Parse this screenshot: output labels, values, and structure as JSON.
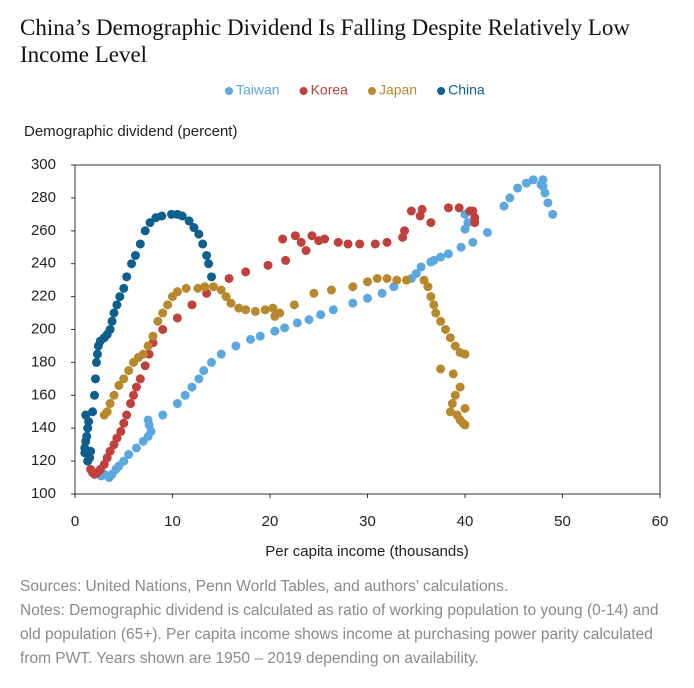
{
  "chart_data": {
    "type": "scatter",
    "title": "China’s Demographic Dividend Is Falling Despite Relatively Low Income Level",
    "y_label": "Demographic dividend (percent)",
    "x_label": "Per capita income (thousands)",
    "source": "Sources: United Nations, Penn World Tables, and authors’ calculations.",
    "notes": "Notes: Demographic dividend is calculated as ratio of working population to young (0-14) and old population (65+). Per capita income shows income at purchasing power parity calculated from PWT. Years shown are 1950 – 2019 depending on availability.",
    "xlim": [
      0,
      60
    ],
    "xticks": [
      0,
      10,
      20,
      30,
      40,
      50,
      60
    ],
    "ylim": [
      100,
      300
    ],
    "yticks": [
      100,
      120,
      140,
      160,
      180,
      200,
      220,
      240,
      260,
      280,
      300
    ],
    "series": [
      {
        "name": "Taiwan",
        "color": "#5ba8e0",
        "x": [
          2.7,
          3,
          3.5,
          3.8,
          4.2,
          4.5,
          5,
          5.5,
          6.3,
          7,
          7.5,
          7.8,
          7.6,
          7.5,
          9,
          10.5,
          11.3,
          12,
          12.7,
          13.2,
          14,
          15,
          16.5,
          18,
          19,
          20.5,
          21.5,
          22.8,
          24,
          25.2,
          26.5,
          28.5,
          30,
          31.5,
          32.7,
          34.5,
          35,
          35.5,
          36.5,
          36.8,
          37.5,
          38.3,
          39.6,
          40,
          40.3,
          40,
          40.8,
          42.3,
          44,
          44.6,
          45.4,
          46.3,
          47,
          47.8,
          48,
          48,
          48.2,
          48.5,
          49
        ],
        "values": [
          111,
          112,
          110,
          112,
          115,
          117,
          120,
          124,
          128,
          132,
          135,
          138,
          142,
          145,
          148,
          155,
          160,
          165,
          170,
          175,
          180,
          185,
          190,
          194,
          196,
          199,
          201,
          204,
          206,
          209,
          212,
          216,
          219,
          222,
          226,
          231,
          234,
          238,
          241,
          242,
          244,
          246,
          250,
          261,
          265,
          270,
          253,
          259,
          275,
          280,
          286,
          289,
          291,
          288,
          287,
          291,
          283,
          277,
          270
        ]
      },
      {
        "name": "Korea",
        "color": "#c0403c",
        "x": [
          1.6,
          1.8,
          2,
          2.3,
          2.6,
          3,
          3.3,
          3.6,
          4,
          4.3,
          4.7,
          5,
          5.3,
          5.7,
          6,
          6.3,
          6.7,
          7.2,
          7.6,
          8,
          9,
          10.5,
          12,
          13.5,
          15.8,
          17.5,
          19.8,
          21.3,
          21.6,
          22.6,
          23.2,
          23.7,
          24.3,
          25,
          25.6,
          27,
          28,
          29.2,
          30.8,
          32,
          33.6,
          33.8,
          34.5,
          35.4,
          35.6,
          36.5,
          38.3,
          39.4,
          40.5,
          41,
          41,
          40.8
        ],
        "values": [
          115,
          113,
          112,
          113,
          115,
          118,
          122,
          126,
          130,
          134,
          138,
          143,
          148,
          155,
          160,
          165,
          170,
          178,
          185,
          192,
          200,
          207,
          215,
          222,
          231,
          235,
          239,
          255,
          242,
          257,
          253,
          248,
          257,
          254,
          255,
          253,
          252,
          252,
          252,
          253,
          256,
          260,
          272,
          269,
          273,
          265,
          274,
          274,
          272,
          268,
          265,
          272
        ]
      },
      {
        "name": "Japan",
        "color": "#b8892c",
        "x": [
          3,
          3.3,
          3.6,
          4,
          4.5,
          5,
          5.5,
          6,
          6.5,
          7,
          7.5,
          8,
          8.5,
          9,
          9.5,
          10,
          10.5,
          11.4,
          12.6,
          13.3,
          14.2,
          15,
          15.5,
          16,
          16.8,
          17.5,
          18.5,
          19.5,
          20.3,
          20.5,
          21,
          22.5,
          24.5,
          26.3,
          28.5,
          30,
          31,
          32,
          33,
          34,
          35.8,
          36.2,
          36.5,
          36.8,
          37,
          37.5,
          38,
          38.5,
          39,
          39.5,
          40,
          38.8,
          37.5,
          39.5,
          39,
          38.7,
          38.5,
          39.2,
          39.5,
          39.8,
          40,
          40
        ],
        "values": [
          148,
          150,
          155,
          160,
          166,
          170,
          175,
          180,
          183,
          185,
          190,
          196,
          205,
          210,
          215,
          220,
          223,
          225,
          225,
          226,
          226,
          224,
          220,
          216,
          213,
          212,
          211,
          212,
          213,
          208,
          210,
          215,
          222,
          224,
          226,
          229,
          231,
          231,
          230,
          230,
          230,
          226,
          220,
          215,
          210,
          205,
          200,
          195,
          190,
          186,
          185,
          173,
          176,
          165,
          160,
          155,
          150,
          148,
          145,
          143,
          142,
          152
        ]
      },
      {
        "name": "China",
        "color": "#0d5f8e",
        "x": [
          1,
          1,
          1.1,
          1.2,
          1.3,
          1.4,
          1.1,
          1.3,
          1.5,
          1.6,
          1.8,
          2,
          2.1,
          2.2,
          2.3,
          2.4,
          2.6,
          3,
          3.3,
          3.6,
          3.8,
          4,
          4.3,
          4.6,
          5,
          5.3,
          5.8,
          6.2,
          6.7,
          7.2,
          7.7,
          8.3,
          8.9,
          9.9,
          10.5,
          11,
          11.7,
          12.2,
          12.7,
          13.1,
          13.5,
          13.7,
          14
        ],
        "values": [
          125,
          128,
          132,
          135,
          140,
          144,
          148,
          120,
          122,
          126,
          150,
          160,
          170,
          180,
          185,
          190,
          193,
          195,
          197,
          200,
          205,
          210,
          215,
          220,
          225,
          232,
          240,
          245,
          252,
          260,
          265,
          268,
          269,
          270,
          270,
          269,
          266,
          262,
          258,
          252,
          245,
          240,
          232
        ]
      }
    ]
  }
}
